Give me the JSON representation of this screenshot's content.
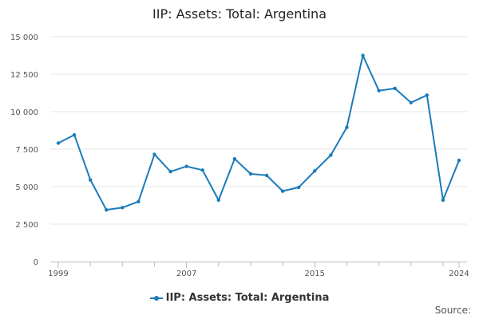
{
  "chart_data": {
    "type": "line",
    "title": "IIP: Assets: Total: Argentina",
    "xlabel": "",
    "ylabel": "",
    "x": [
      1999,
      2000,
      2001,
      2002,
      2003,
      2004,
      2005,
      2006,
      2007,
      2008,
      2009,
      2010,
      2011,
      2012,
      2013,
      2014,
      2015,
      2016,
      2017,
      2018,
      2019,
      2020,
      2021,
      2022,
      2023,
      2024
    ],
    "series": [
      {
        "name": "IIP: Assets: Total: Argentina",
        "color": "#1a7bb9",
        "values": [
          7900,
          8450,
          5450,
          3450,
          3600,
          4000,
          7150,
          6000,
          6350,
          6100,
          4100,
          6850,
          5850,
          5750,
          4700,
          4950,
          6050,
          7100,
          8950,
          13750,
          11400,
          11550,
          10600,
          11100,
          4100,
          6750
        ]
      }
    ],
    "ylim": [
      0,
      15000
    ],
    "yticks": [
      0,
      2500,
      5000,
      7500,
      10000,
      12500,
      15000
    ],
    "ytick_labels": [
      "0",
      "2 500",
      "5 000",
      "7 500",
      "10 000",
      "12 500",
      "15 000"
    ],
    "xlim": [
      1999,
      2024
    ],
    "xticks": [
      1999,
      2007,
      2015,
      2024
    ],
    "xtick_labels": [
      "1999",
      "2007",
      "2015",
      "2024"
    ],
    "grid": true,
    "legend_position": "bottom"
  },
  "source_label": "Source:"
}
